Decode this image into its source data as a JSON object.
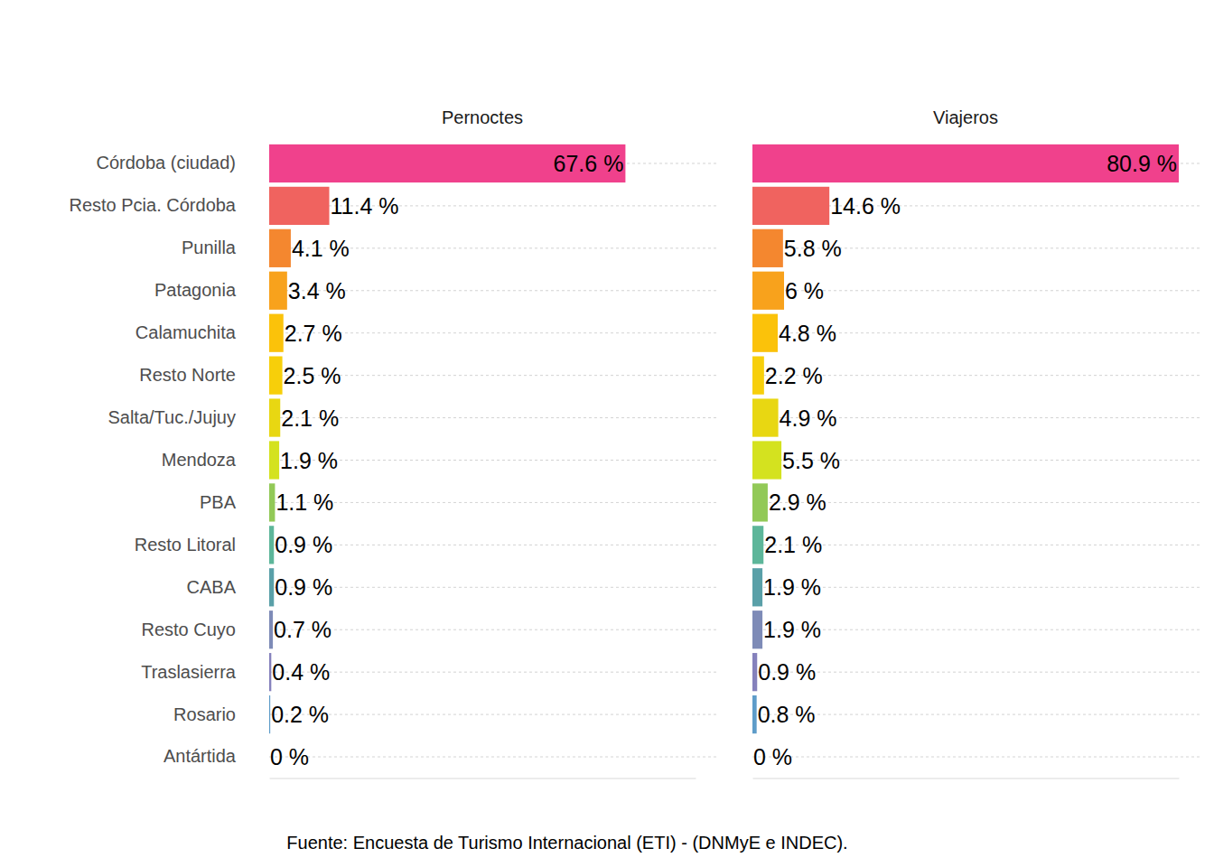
{
  "chart_data": {
    "type": "bar",
    "orientation": "horizontal",
    "categories": [
      "Córdoba (ciudad)",
      "Resto Pcia. Córdoba",
      "Punilla",
      "Patagonia",
      "Calamuchita",
      "Resto Norte",
      "Salta/Tuc./Jujuy",
      "Mendoza",
      "PBA",
      "Resto Litoral",
      "CABA",
      "Resto Cuyo",
      "Traslasierra",
      "Rosario",
      "Antártida"
    ],
    "colors": [
      "#f0418c",
      "#f0635f",
      "#f4872f",
      "#f8a21c",
      "#fbc20a",
      "#f7cf0a",
      "#e8d712",
      "#d4e21f",
      "#92c957",
      "#5db69a",
      "#5aa0a8",
      "#7e8bb7",
      "#8581bc",
      "#5e9cc9",
      "#4fa0d0"
    ],
    "series": [
      {
        "name": "Pernoctes",
        "values": [
          67.6,
          11.4,
          4.1,
          3.4,
          2.7,
          2.5,
          2.1,
          1.9,
          1.1,
          0.9,
          0.9,
          0.7,
          0.4,
          0.2,
          0
        ],
        "value_labels": [
          "67.6 %",
          "11.4 %",
          "4.1 %",
          "3.4 %",
          "2.7 %",
          "2.5 %",
          "2.1 %",
          "1.9 %",
          "1.1 %",
          "0.9 %",
          "0.9 %",
          "0.7 %",
          "0.4 %",
          "0.2 %",
          "0 %"
        ]
      },
      {
        "name": "Viajeros",
        "values": [
          80.9,
          14.6,
          5.8,
          6,
          4.8,
          2.2,
          4.9,
          5.5,
          2.9,
          2.1,
          1.9,
          1.9,
          0.9,
          0.8,
          0
        ],
        "value_labels": [
          "80.9 %",
          "14.6 %",
          "5.8 %",
          "6 %",
          "4.8 %",
          "2.2 %",
          "4.9 %",
          "5.5 %",
          "2.9 %",
          "2.1 %",
          "1.9 %",
          "1.9 %",
          "0.9 %",
          "0.8 %",
          "0 %"
        ]
      }
    ],
    "xlim": [
      0,
      80.9
    ],
    "xticks": [],
    "grid": true,
    "data_labels": true,
    "tick_labels": "y"
  },
  "caption": "Fuente: Encuesta de Turismo Internacional (ETI) - (DNMyE e INDEC)."
}
